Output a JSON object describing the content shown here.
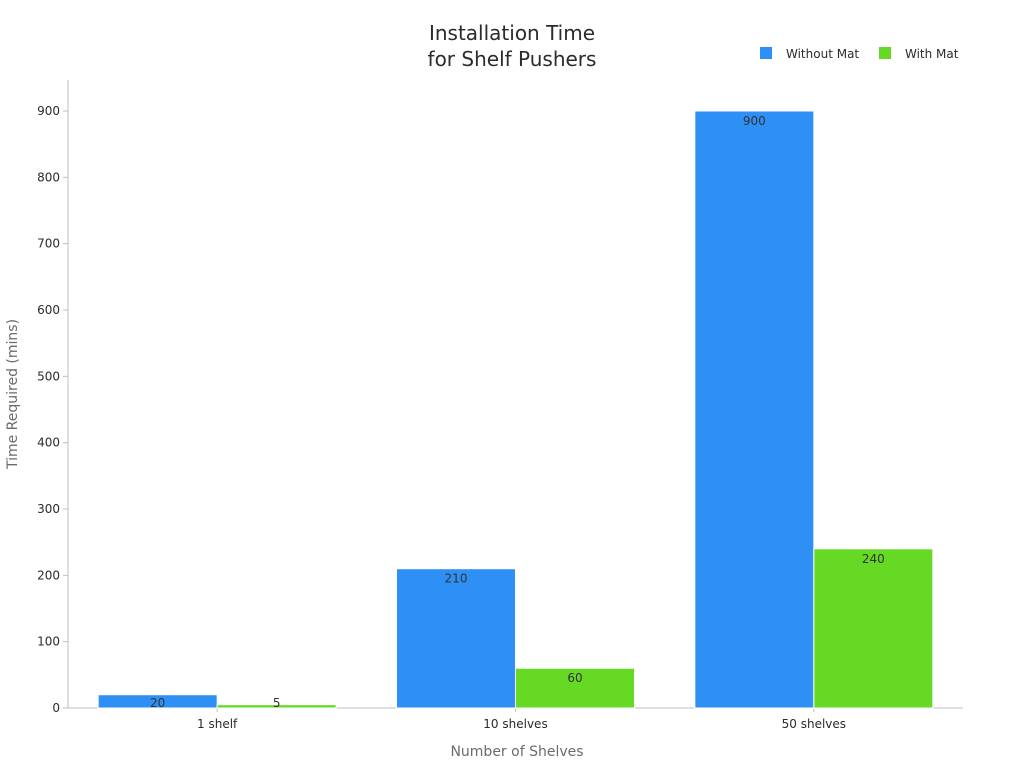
{
  "chart_data": {
    "type": "bar",
    "title_lines": [
      "Installation Time",
      "for Shelf Pushers"
    ],
    "xlabel": "Number of Shelves",
    "ylabel": "Time Required (mins)",
    "categories": [
      "1 shelf",
      "10 shelves",
      "50 shelves"
    ],
    "series": [
      {
        "name": "Without Mat",
        "color": "#2e8ff5",
        "values": [
          20,
          210,
          900
        ]
      },
      {
        "name": "With Mat",
        "color": "#66d925",
        "values": [
          5,
          60,
          240
        ]
      }
    ],
    "ylim": [
      0,
      950
    ],
    "yticks": [
      0,
      100,
      200,
      300,
      400,
      500,
      600,
      700,
      800,
      900
    ],
    "legend_position": "top-right",
    "grid": false
  }
}
